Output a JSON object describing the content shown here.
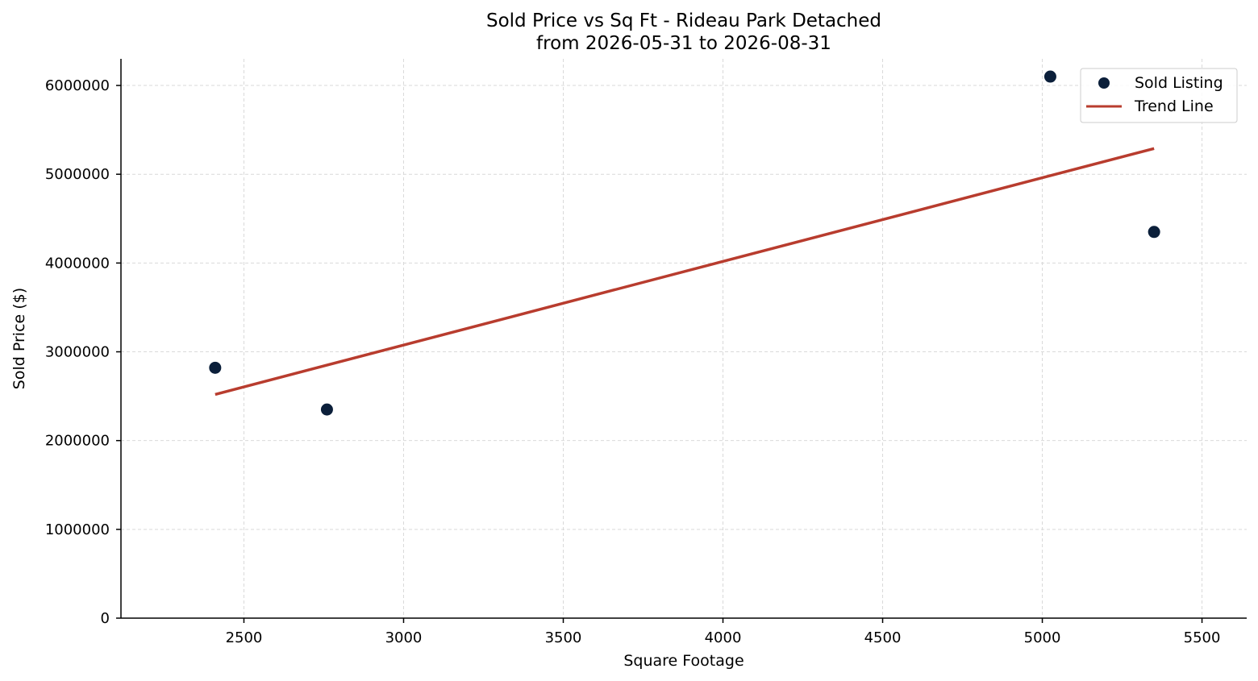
{
  "chart_data": {
    "type": "scatter",
    "title": "Sold Price vs Sq Ft - Rideau Park Detached",
    "subtitle": "from 2026-05-31 to 2026-08-31",
    "xlabel": "Square Footage",
    "ylabel": "Sold Price ($)",
    "xlim": [
      2115,
      5640
    ],
    "ylim": [
      0,
      6300000
    ],
    "xticks": [
      2500,
      3000,
      3500,
      4000,
      4500,
      5000,
      5500
    ],
    "yticks": [
      0,
      1000000,
      2000000,
      3000000,
      4000000,
      5000000,
      6000000
    ],
    "grid": true,
    "legend_position": "top-right",
    "series": [
      {
        "name": "Sold Listing",
        "kind": "scatter",
        "color": "#0b1f3a",
        "points": [
          {
            "x": 2410,
            "y": 2820000
          },
          {
            "x": 2760,
            "y": 2350000
          },
          {
            "x": 5025,
            "y": 6100000
          },
          {
            "x": 5350,
            "y": 4350000
          }
        ]
      },
      {
        "name": "Trend Line",
        "kind": "line",
        "color": "#b83c2e",
        "points": [
          {
            "x": 2410,
            "y": 2520000
          },
          {
            "x": 5350,
            "y": 5290000
          }
        ]
      }
    ]
  }
}
